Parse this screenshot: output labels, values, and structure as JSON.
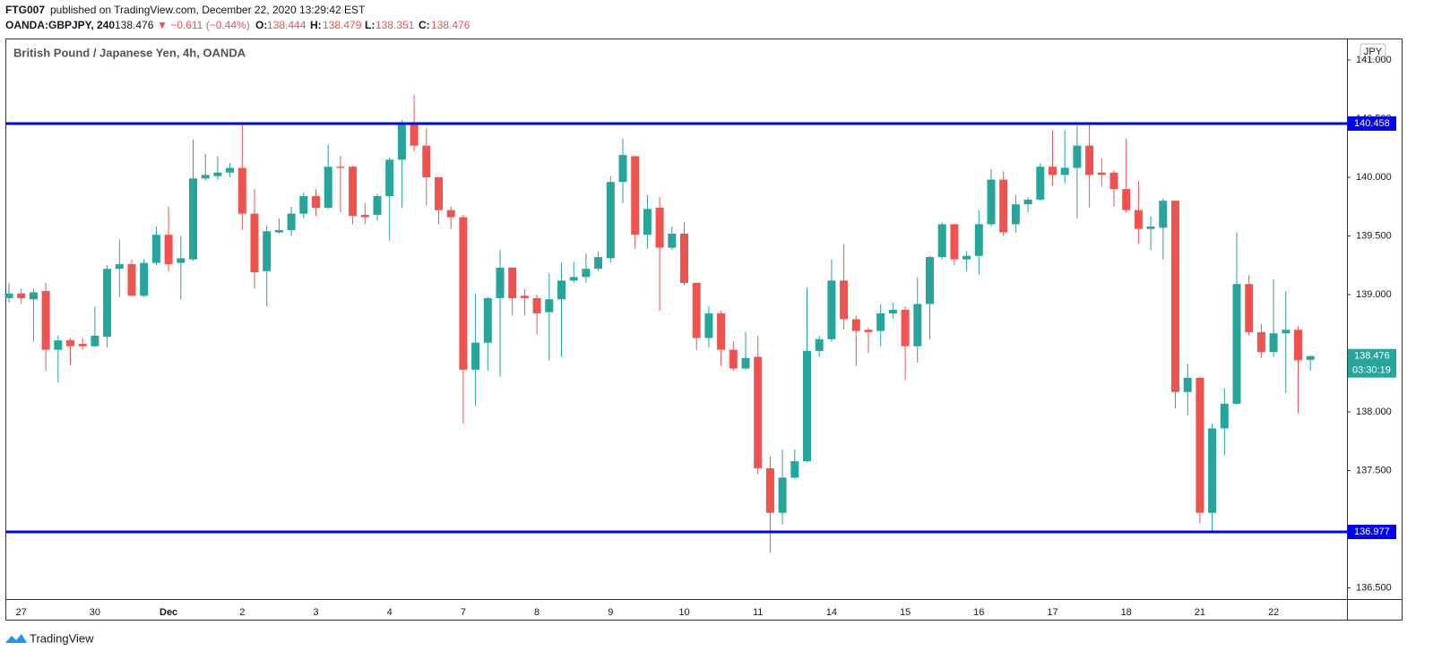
{
  "header": {
    "publisher": "FTG007",
    "published": "published on TradingView.com, December 22, 2020 13:29:42 EST",
    "symbol": "OANDA:GBPJPY, 240",
    "price": "138.476",
    "change": "▼ −0.611 (−0.44%)",
    "o_label": "O:",
    "o": "138.444",
    "h_label": "H:",
    "h": "138.479",
    "l_label": "L:",
    "l": "138.351",
    "c_label": "C:",
    "c": "138.476"
  },
  "footer": {
    "brand": "TradingView"
  },
  "chart_data": {
    "type": "candlestick",
    "title": "British Pound / Japanese Yen, 4h, OANDA",
    "currency": "JPY",
    "countdown": "03:30:19",
    "up_color": "#26a69a",
    "down_color": "#ef5350",
    "hline_color": "#0000ff",
    "grid": false,
    "ylim": [
      136.405,
      141.183
    ],
    "yticks": [
      {
        "value": 136.5,
        "label": "136.500"
      },
      {
        "value": 137,
        "label": "137.000"
      },
      {
        "value": 137.5,
        "label": "137.500"
      },
      {
        "value": 138,
        "label": "138.000"
      },
      {
        "value": 138.5,
        "label": "138.500"
      },
      {
        "value": 139,
        "label": "139.000"
      },
      {
        "value": 139.5,
        "label": "139.500"
      },
      {
        "value": 140,
        "label": "140.000"
      },
      {
        "value": 140.5,
        "label": "140.500"
      },
      {
        "value": 141,
        "label": "141.000"
      }
    ],
    "hlines": [
      140.458,
      136.977
    ],
    "categories": [
      null,
      "27",
      null,
      null,
      null,
      null,
      null,
      "30",
      null,
      null,
      null,
      null,
      null,
      "Dec",
      null,
      null,
      null,
      null,
      null,
      "2",
      null,
      null,
      null,
      null,
      null,
      "3",
      null,
      null,
      null,
      null,
      null,
      "4",
      null,
      null,
      null,
      null,
      null,
      "7",
      null,
      null,
      null,
      null,
      null,
      "8",
      null,
      null,
      null,
      null,
      null,
      "9",
      null,
      null,
      null,
      null,
      null,
      "10",
      null,
      null,
      null,
      null,
      null,
      "11",
      null,
      null,
      null,
      null,
      null,
      "14",
      null,
      null,
      null,
      null,
      null,
      "15",
      null,
      null,
      null,
      null,
      null,
      "16",
      null,
      null,
      null,
      null,
      null,
      "17",
      null,
      null,
      null,
      null,
      null,
      "18",
      null,
      null,
      null,
      null,
      null,
      "21",
      null,
      null,
      null,
      null,
      null,
      "22",
      null,
      null,
      null
    ],
    "open": [
      138.97,
      139.01,
      138.96,
      139.03,
      138.53,
      138.61,
      138.58,
      138.56,
      138.64,
      139.22,
      139.26,
      138.99,
      139.27,
      139.51,
      139.27,
      139.3,
      139.99,
      140.01,
      140.04,
      140.08,
      139.69,
      139.2,
      139.53,
      139.55,
      139.69,
      139.84,
      139.74,
      140.09,
      140.09,
      139.68,
      139.68,
      139.84,
      140.15,
      140.45,
      140.27,
      140.0,
      139.72,
      139.66,
      138.36,
      138.59,
      138.97,
      139.23,
      138.99,
      138.97,
      138.85,
      138.96,
      139.12,
      139.15,
      139.22,
      139.31,
      139.96,
      140.18,
      139.51,
      139.74,
      139.4,
      139.52,
      139.1,
      138.63,
      138.84,
      138.53,
      138.37,
      138.47,
      137.52,
      137.14,
      137.44,
      137.58,
      138.52,
      138.62,
      139.12,
      138.79,
      138.7,
      138.69,
      138.84,
      138.87,
      138.56,
      138.92,
      139.32,
      139.6,
      139.3,
      139.33,
      139.6,
      139.98,
      139.6,
      139.77,
      139.81,
      140.09,
      140.02,
      140.08,
      140.27,
      140.04,
      140.04,
      139.9,
      139.72,
      139.56,
      139.57,
      139.8,
      138.17,
      138.29,
      137.14,
      137.86,
      138.07,
      139.09,
      138.68,
      138.51,
      138.67,
      138.7,
      138.444
    ],
    "high": [
      139.1,
      139.05,
      139.05,
      139.1,
      138.65,
      138.63,
      138.63,
      138.9,
      139.25,
      139.47,
      139.3,
      139.3,
      139.58,
      139.75,
      139.5,
      140.32,
      140.2,
      140.18,
      140.12,
      140.45,
      139.9,
      139.59,
      139.65,
      139.75,
      139.87,
      139.9,
      140.28,
      140.18,
      140.1,
      139.78,
      139.86,
      140.17,
      140.49,
      140.7,
      140.42,
      140.0,
      139.75,
      139.68,
      139.01,
      138.98,
      139.38,
      139.23,
      139.05,
      139.0,
      139.18,
      139.27,
      139.28,
      139.35,
      139.37,
      140.01,
      140.33,
      140.18,
      139.85,
      139.83,
      139.58,
      139.62,
      139.1,
      138.9,
      138.86,
      138.6,
      138.68,
      138.65,
      137.62,
      137.68,
      137.68,
      139.06,
      138.65,
      139.3,
      139.43,
      138.82,
      138.72,
      138.92,
      138.93,
      138.9,
      139.15,
      139.33,
      139.62,
      139.6,
      139.37,
      139.72,
      140.07,
      140.05,
      139.85,
      139.83,
      140.12,
      140.4,
      140.4,
      140.44,
      140.45,
      140.16,
      140.06,
      140.33,
      139.97,
      139.67,
      139.82,
      139.8,
      138.41,
      138.3,
      137.9,
      138.2,
      139.53,
      139.17,
      138.75,
      139.13,
      139.03,
      138.73,
      138.479
    ],
    "low": [
      138.93,
      138.92,
      138.6,
      138.35,
      138.25,
      138.4,
      138.53,
      138.55,
      138.55,
      138.98,
      138.99,
      138.98,
      139.25,
      139.2,
      138.96,
      139.29,
      139.97,
      139.98,
      140.0,
      139.55,
      139.05,
      138.9,
      139.52,
      139.5,
      139.65,
      139.67,
      139.73,
      139.7,
      139.6,
      139.6,
      139.63,
      139.46,
      139.74,
      140.22,
      139.76,
      139.6,
      139.56,
      137.9,
      138.05,
      138.35,
      138.3,
      138.82,
      138.82,
      138.66,
      138.44,
      138.47,
      139.1,
      139.1,
      139.2,
      139.27,
      139.78,
      139.39,
      139.39,
      138.86,
      139.38,
      139.08,
      138.53,
      138.55,
      138.39,
      138.35,
      138.36,
      137.47,
      136.8,
      137.04,
      137.43,
      137.57,
      138.47,
      138.6,
      138.7,
      138.39,
      138.5,
      138.56,
      138.8,
      138.27,
      138.42,
      138.62,
      139.3,
      139.25,
      139.2,
      139.17,
      139.58,
      139.5,
      139.53,
      139.7,
      139.8,
      139.93,
      139.95,
      139.65,
      139.74,
      139.92,
      139.75,
      139.7,
      139.43,
      139.38,
      139.3,
      138.03,
      137.97,
      137.05,
      136.98,
      137.63,
      138.06,
      138.65,
      138.46,
      138.47,
      138.16,
      137.99,
      138.351
    ],
    "close": [
      139.01,
      138.97,
      139.02,
      138.53,
      138.61,
      138.56,
      138.56,
      138.65,
      139.22,
      139.26,
      138.99,
      139.27,
      139.51,
      139.26,
      139.31,
      139.99,
      140.02,
      140.04,
      140.08,
      139.69,
      139.19,
      139.54,
      139.55,
      139.69,
      139.84,
      139.74,
      140.09,
      140.08,
      139.67,
      139.66,
      139.84,
      140.15,
      140.45,
      140.27,
      140.0,
      139.72,
      139.66,
      138.36,
      138.59,
      138.97,
      139.23,
      138.97,
      138.97,
      138.84,
      138.96,
      139.12,
      139.15,
      139.22,
      139.32,
      139.96,
      140.19,
      139.51,
      139.73,
      139.4,
      139.52,
      139.1,
      138.63,
      138.84,
      138.53,
      138.37,
      138.46,
      137.52,
      137.14,
      137.44,
      137.58,
      138.52,
      138.62,
      139.12,
      138.79,
      138.69,
      138.68,
      138.84,
      138.87,
      138.56,
      138.92,
      139.32,
      139.6,
      139.3,
      139.33,
      139.6,
      139.98,
      139.53,
      139.77,
      139.81,
      140.09,
      140.02,
      140.08,
      140.27,
      140.02,
      140.02,
      139.9,
      139.72,
      139.56,
      139.58,
      139.8,
      138.17,
      138.29,
      137.14,
      137.86,
      138.07,
      139.09,
      138.68,
      138.51,
      138.67,
      138.7,
      138.44,
      138.476
    ]
  }
}
